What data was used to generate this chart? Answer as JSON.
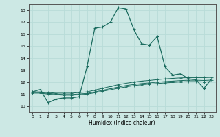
{
  "title": "",
  "xlabel": "Humidex (Indice chaleur)",
  "bg_color": "#cce8e4",
  "line_color": "#1a6b5e",
  "grid_color": "#b8dcd8",
  "xlim": [
    -0.5,
    23.5
  ],
  "ylim": [
    9.5,
    18.5
  ],
  "yticks": [
    10,
    11,
    12,
    13,
    14,
    15,
    16,
    17,
    18
  ],
  "xticks": [
    0,
    1,
    2,
    3,
    4,
    5,
    6,
    7,
    8,
    9,
    10,
    11,
    12,
    13,
    14,
    15,
    16,
    17,
    18,
    19,
    20,
    21,
    22,
    23
  ],
  "series1_x": [
    0,
    1,
    2,
    3,
    4,
    5,
    6,
    7,
    8,
    9,
    10,
    11,
    12,
    13,
    14,
    15,
    16,
    17,
    18,
    19,
    20,
    21,
    22,
    23
  ],
  "series1_y": [
    11.2,
    11.4,
    10.3,
    10.6,
    10.7,
    10.7,
    10.8,
    13.3,
    16.5,
    16.6,
    17.0,
    18.2,
    18.1,
    16.4,
    15.2,
    15.1,
    15.8,
    13.3,
    12.6,
    12.7,
    12.3,
    12.2,
    11.5,
    12.3
  ],
  "series2_x": [
    0,
    1,
    2,
    3,
    4,
    5,
    6,
    7,
    8,
    9,
    10,
    11,
    12,
    13,
    14,
    15,
    16,
    17,
    18,
    19,
    20,
    21,
    22,
    23
  ],
  "series2_y": [
    11.2,
    11.2,
    11.15,
    11.1,
    11.1,
    11.1,
    11.15,
    11.2,
    11.35,
    11.5,
    11.65,
    11.8,
    11.92,
    12.02,
    12.1,
    12.15,
    12.22,
    12.28,
    12.32,
    12.36,
    12.38,
    12.38,
    12.38,
    12.4
  ],
  "series3_x": [
    0,
    1,
    2,
    3,
    4,
    5,
    6,
    7,
    8,
    9,
    10,
    11,
    12,
    13,
    14,
    15,
    16,
    17,
    18,
    19,
    20,
    21,
    22,
    23
  ],
  "series3_y": [
    11.15,
    11.15,
    11.08,
    11.03,
    10.99,
    10.99,
    11.03,
    11.08,
    11.2,
    11.33,
    11.47,
    11.6,
    11.73,
    11.82,
    11.9,
    11.95,
    12.01,
    12.06,
    12.1,
    12.14,
    12.17,
    12.17,
    12.15,
    12.18
  ],
  "series4_x": [
    0,
    1,
    2,
    3,
    4,
    5,
    6,
    7,
    8,
    9,
    10,
    11,
    12,
    13,
    14,
    15,
    16,
    17,
    18,
    19,
    20,
    21,
    22,
    23
  ],
  "series4_y": [
    11.1,
    11.1,
    11.02,
    10.97,
    10.93,
    10.93,
    10.97,
    11.02,
    11.13,
    11.25,
    11.38,
    11.5,
    11.62,
    11.72,
    11.8,
    11.85,
    11.9,
    11.95,
    11.99,
    12.03,
    12.06,
    12.06,
    12.03,
    12.06
  ]
}
